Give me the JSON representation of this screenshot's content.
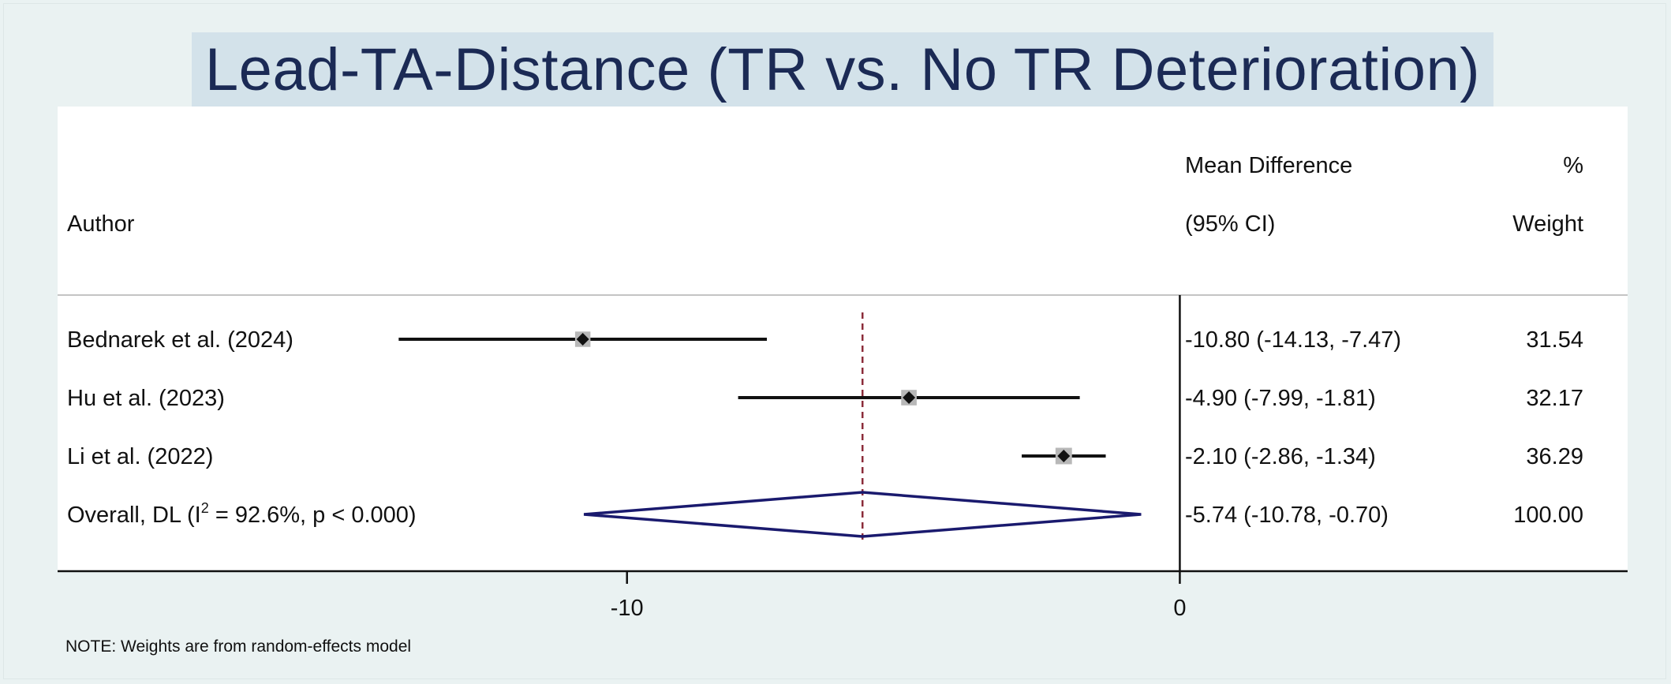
{
  "title": "Lead-TA-Distance (TR vs. No TR Deterioration)",
  "note": "NOTE: Weights are from random-effects model",
  "headers": {
    "author": "Author",
    "md_line1": "Mean Difference",
    "md_line2": "(95% CI)",
    "weight_line1": "%",
    "weight_line2": "Weight"
  },
  "colors": {
    "background": "#eaf2f2",
    "title_band": "#d3e2ea",
    "title_text": "#1b2a55",
    "diamond": "#1a1a6e",
    "reference_line": "#8b2c3a",
    "weight_box": "#b8b8b8"
  },
  "chart_data": {
    "type": "forest",
    "xlim": [
      -20.3,
      8.1
    ],
    "x_ticks": [
      {
        "value": -10,
        "label": "-10"
      },
      {
        "value": 0,
        "label": "0"
      }
    ],
    "null_line": 0,
    "overall_line": -5.74,
    "studies": [
      {
        "author": "Bednarek et al. (2024)",
        "md": -10.8,
        "lower": -14.13,
        "upper": -7.47,
        "ci_text": "-10.80 (-14.13, -7.47)",
        "weight": 31.54,
        "weight_text": "31.54"
      },
      {
        "author": "Hu et al. (2023)",
        "md": -4.9,
        "lower": -7.99,
        "upper": -1.81,
        "ci_text": "-4.90 (-7.99, -1.81)",
        "weight": 32.17,
        "weight_text": "32.17"
      },
      {
        "author": "Li et al. (2022)",
        "md": -2.1,
        "lower": -2.86,
        "upper": -1.34,
        "ci_text": "-2.10 (-2.86, -1.34)",
        "weight": 36.29,
        "weight_text": "36.29"
      }
    ],
    "overall": {
      "label_prefix": "Overall, DL (I",
      "label_sup": "2",
      "label_suffix": " = 92.6%, p < 0.000)",
      "md": -5.74,
      "lower": -10.78,
      "upper": -0.7,
      "ci_text": "-5.74 (-10.78, -0.70)",
      "weight_text": "100.00"
    }
  }
}
